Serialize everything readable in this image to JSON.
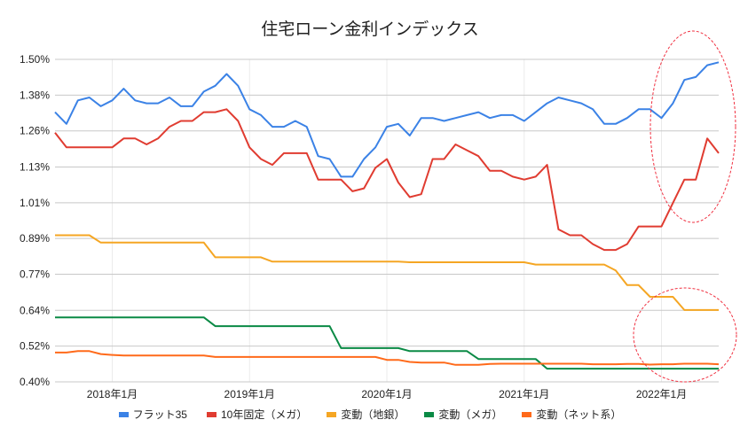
{
  "chart_data": {
    "type": "line",
    "title": "住宅ローン金利インデックス",
    "xlabel": "",
    "ylabel": "",
    "ylim": [
      0.4,
      1.5
    ],
    "yticks": [
      "0.40%",
      "0.52%",
      "0.64%",
      "0.77%",
      "0.89%",
      "1.01%",
      "1.13%",
      "1.26%",
      "1.38%",
      "1.50%"
    ],
    "ytick_values": [
      0.4,
      0.522,
      0.644,
      0.767,
      0.889,
      1.011,
      1.133,
      1.256,
      1.378,
      1.5
    ],
    "x_start": "2017-08",
    "x_end": "2022-06",
    "xticks": [
      {
        "label": "2018年1月",
        "index": 5
      },
      {
        "label": "2019年1月",
        "index": 17
      },
      {
        "label": "2020年1月",
        "index": 29
      },
      {
        "label": "2021年1月",
        "index": 41
      },
      {
        "label": "2022年1月",
        "index": 53
      }
    ],
    "legend_position": "bottom",
    "series": [
      {
        "name": "フラット35",
        "color": "#3b82e6",
        "values": [
          1.32,
          1.28,
          1.36,
          1.37,
          1.34,
          1.36,
          1.4,
          1.36,
          1.35,
          1.35,
          1.37,
          1.34,
          1.34,
          1.39,
          1.41,
          1.45,
          1.41,
          1.33,
          1.31,
          1.27,
          1.27,
          1.29,
          1.27,
          1.17,
          1.16,
          1.1,
          1.1,
          1.16,
          1.2,
          1.27,
          1.28,
          1.24,
          1.3,
          1.3,
          1.29,
          1.3,
          1.31,
          1.32,
          1.3,
          1.31,
          1.31,
          1.29,
          1.32,
          1.35,
          1.37,
          1.36,
          1.35,
          1.33,
          1.28,
          1.28,
          1.3,
          1.33,
          1.33,
          1.3,
          1.35,
          1.43,
          1.44,
          1.48,
          1.49
        ]
      },
      {
        "name": "10年固定（メガ）",
        "color": "#e03c31",
        "values": [
          1.25,
          1.2,
          1.2,
          1.2,
          1.2,
          1.2,
          1.23,
          1.23,
          1.21,
          1.23,
          1.27,
          1.29,
          1.29,
          1.32,
          1.32,
          1.33,
          1.29,
          1.2,
          1.16,
          1.14,
          1.18,
          1.18,
          1.18,
          1.09,
          1.09,
          1.09,
          1.05,
          1.06,
          1.13,
          1.16,
          1.08,
          1.03,
          1.04,
          1.16,
          1.16,
          1.21,
          1.19,
          1.17,
          1.12,
          1.12,
          1.1,
          1.09,
          1.1,
          1.14,
          0.92,
          0.9,
          0.9,
          0.87,
          0.85,
          0.85,
          0.87,
          0.93,
          0.93,
          0.93,
          1.01,
          1.09,
          1.09,
          1.23,
          1.18
        ]
      },
      {
        "name": "変動（地銀）",
        "color": "#f5a623",
        "values": [
          0.9,
          0.9,
          0.9,
          0.9,
          0.875,
          0.875,
          0.875,
          0.875,
          0.875,
          0.875,
          0.875,
          0.875,
          0.875,
          0.875,
          0.825,
          0.825,
          0.825,
          0.825,
          0.825,
          0.81,
          0.81,
          0.81,
          0.81,
          0.81,
          0.81,
          0.81,
          0.81,
          0.81,
          0.81,
          0.81,
          0.81,
          0.808,
          0.808,
          0.808,
          0.808,
          0.808,
          0.808,
          0.808,
          0.808,
          0.808,
          0.808,
          0.808,
          0.8,
          0.8,
          0.8,
          0.8,
          0.8,
          0.8,
          0.8,
          0.78,
          0.73,
          0.73,
          0.69,
          0.69,
          0.69,
          0.645,
          0.645,
          0.645,
          0.645
        ]
      },
      {
        "name": "変動（メガ）",
        "color": "#0a8a45",
        "values": [
          0.62,
          0.62,
          0.62,
          0.62,
          0.62,
          0.62,
          0.62,
          0.62,
          0.62,
          0.62,
          0.62,
          0.62,
          0.62,
          0.62,
          0.59,
          0.59,
          0.59,
          0.59,
          0.59,
          0.59,
          0.59,
          0.59,
          0.59,
          0.59,
          0.59,
          0.515,
          0.515,
          0.515,
          0.515,
          0.515,
          0.515,
          0.505,
          0.505,
          0.505,
          0.505,
          0.505,
          0.505,
          0.478,
          0.478,
          0.478,
          0.478,
          0.478,
          0.478,
          0.445,
          0.445,
          0.445,
          0.445,
          0.445,
          0.445,
          0.445,
          0.445,
          0.445,
          0.445,
          0.445,
          0.445,
          0.445,
          0.445,
          0.445,
          0.445
        ]
      },
      {
        "name": "変動（ネット系）",
        "color": "#ff6a1a",
        "values": [
          0.5,
          0.5,
          0.505,
          0.505,
          0.495,
          0.492,
          0.49,
          0.49,
          0.49,
          0.49,
          0.49,
          0.49,
          0.49,
          0.49,
          0.485,
          0.485,
          0.485,
          0.485,
          0.485,
          0.485,
          0.485,
          0.485,
          0.485,
          0.485,
          0.485,
          0.485,
          0.485,
          0.485,
          0.485,
          0.475,
          0.475,
          0.468,
          0.466,
          0.466,
          0.466,
          0.458,
          0.458,
          0.458,
          0.461,
          0.462,
          0.462,
          0.462,
          0.462,
          0.462,
          0.462,
          0.462,
          0.462,
          0.46,
          0.46,
          0.46,
          0.461,
          0.461,
          0.459,
          0.46,
          0.46,
          0.462,
          0.462,
          0.462,
          0.46
        ]
      }
    ]
  }
}
